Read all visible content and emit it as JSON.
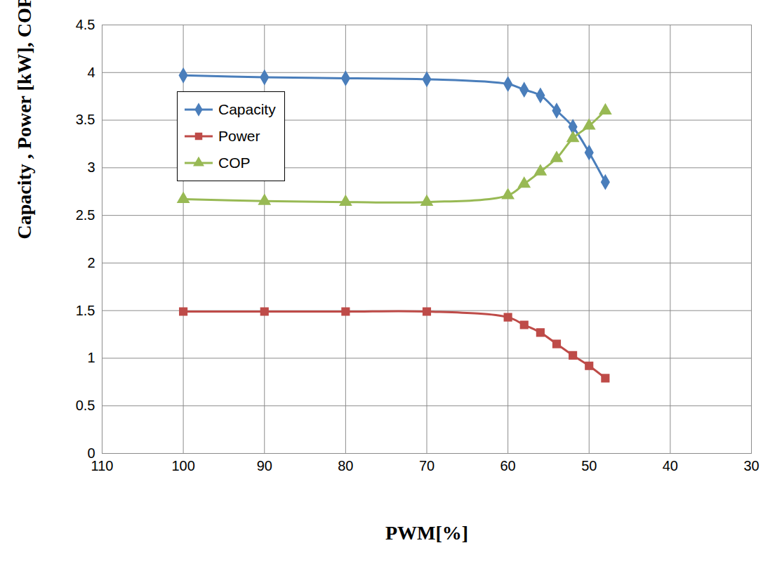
{
  "chart_data": {
    "type": "line",
    "x_label": "PWM[%]",
    "y_label": "Capacity , Power [kW], COP[-]",
    "x": [
      100,
      90,
      80,
      70,
      60,
      58,
      56,
      54,
      52,
      50,
      48
    ],
    "series": [
      {
        "name": "Capacity",
        "color": "#4a7ebb",
        "marker": "diamond",
        "line_style": "solid",
        "values": [
          3.97,
          3.95,
          3.94,
          3.93,
          3.88,
          3.82,
          3.76,
          3.6,
          3.43,
          3.16,
          2.85
        ]
      },
      {
        "name": "Power",
        "color": "#be4b48",
        "marker": "square",
        "line_style": "solid",
        "values": [
          1.49,
          1.49,
          1.49,
          1.49,
          1.43,
          1.35,
          1.27,
          1.15,
          1.03,
          0.92,
          0.79
        ]
      },
      {
        "name": "COP",
        "color": "#98b954",
        "marker": "triangle",
        "line_style": "solid",
        "values": [
          2.67,
          2.65,
          2.64,
          2.64,
          2.71,
          2.83,
          2.96,
          3.1,
          3.31,
          3.44,
          3.6
        ]
      }
    ],
    "xlim": [
      110,
      30
    ],
    "xticks": [
      110,
      100,
      90,
      80,
      70,
      60,
      50,
      40,
      30
    ],
    "ylim": [
      0,
      4.5
    ],
    "yticks": [
      0,
      0.5,
      1,
      1.5,
      2,
      2.5,
      3,
      3.5,
      4,
      4.5
    ],
    "grid": true,
    "legend": "upper left"
  }
}
